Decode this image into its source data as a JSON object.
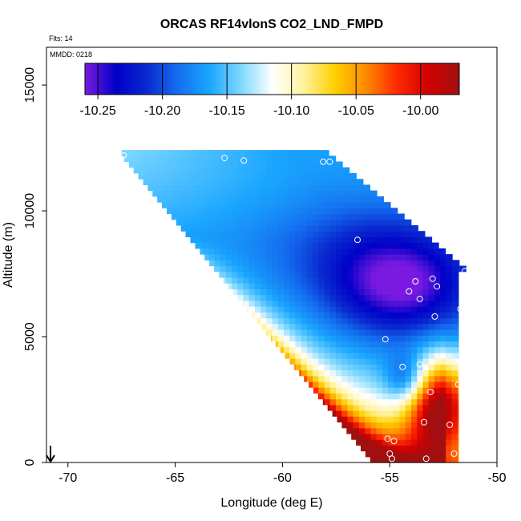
{
  "chart_data": {
    "type": "heatmap",
    "title": "ORCAS RF14vlonS CO2_LND_FMPD",
    "xlabel": "Longitude (deg E)",
    "ylabel": "Altitude (m)",
    "xlim": [
      -71,
      -50
    ],
    "ylim": [
      0,
      16500
    ],
    "x_ticks": [
      -70,
      -65,
      -60,
      -55,
      -50
    ],
    "x_tick_labels": [
      "-70",
      "-65",
      "-60",
      "-55",
      "-50"
    ],
    "y_ticks": [
      0,
      5000,
      10000,
      15000
    ],
    "y_tick_labels": [
      "0",
      "5000",
      "10000",
      "15000"
    ],
    "flts_label": "Flts: 14",
    "mmdd_label": "MMDD: 0218",
    "colorbar": {
      "range": [
        -10.26,
        -9.97
      ],
      "ticks": [
        -10.25,
        -10.2,
        -10.15,
        -10.1,
        -10.05,
        -10.0
      ],
      "tick_labels": [
        "-10.25",
        "-10.20",
        "-10.15",
        "-10.10",
        "-10.05",
        "-10.00"
      ],
      "colors": [
        "#7a1ae0",
        "#0000c8",
        "#0a2ad0",
        "#1470f0",
        "#1aa6ff",
        "#7fd8ff",
        "#ffffff",
        "#fff3a0",
        "#ffd000",
        "#ff8a00",
        "#ff2a00",
        "#d10000",
        "#a01010"
      ]
    },
    "field": {
      "domain_top_altitude": 12200,
      "domain_left_longitude": -67.5,
      "domain_bottom_longitude": -55.8,
      "domain_right_longitude": -51.3,
      "features": [
        {
          "name": "upper-troposphere",
          "value": -10.17
        },
        {
          "name": "mid-level-minimum",
          "lon": -54.5,
          "alt": 6800,
          "value": -10.24
        },
        {
          "name": "boundary-layer-maximum",
          "lon": -54.8,
          "alt": 800,
          "value": -9.99
        },
        {
          "name": "plume-core",
          "lon": -53.0,
          "alt": 2000,
          "value": -10.02
        }
      ]
    },
    "sample_points": [
      {
        "lon": -67.4,
        "alt": 12200
      },
      {
        "lon": -62.7,
        "alt": 12100
      },
      {
        "lon": -61.8,
        "alt": 12000
      },
      {
        "lon": -58.1,
        "alt": 11950
      },
      {
        "lon": -57.8,
        "alt": 11950
      },
      {
        "lon": -56.5,
        "alt": 8850
      },
      {
        "lon": -53.8,
        "alt": 7200
      },
      {
        "lon": -54.1,
        "alt": 6800
      },
      {
        "lon": -53.0,
        "alt": 7300
      },
      {
        "lon": -52.8,
        "alt": 7000
      },
      {
        "lon": -51.5,
        "alt": 7600
      },
      {
        "lon": -53.6,
        "alt": 6500
      },
      {
        "lon": -51.7,
        "alt": 6100
      },
      {
        "lon": -52.9,
        "alt": 5800
      },
      {
        "lon": -55.2,
        "alt": 4900
      },
      {
        "lon": -54.4,
        "alt": 3800
      },
      {
        "lon": -53.6,
        "alt": 3900
      },
      {
        "lon": -53.1,
        "alt": 2800
      },
      {
        "lon": -51.8,
        "alt": 3100
      },
      {
        "lon": -53.4,
        "alt": 1600
      },
      {
        "lon": -52.2,
        "alt": 1500
      },
      {
        "lon": -55.1,
        "alt": 950
      },
      {
        "lon": -54.8,
        "alt": 850
      },
      {
        "lon": -55.0,
        "alt": 350
      },
      {
        "lon": -54.9,
        "alt": 150
      },
      {
        "lon": -53.3,
        "alt": 150
      },
      {
        "lon": -52.0,
        "alt": 350
      }
    ],
    "direction_marker": "down-arrow-at-start"
  }
}
